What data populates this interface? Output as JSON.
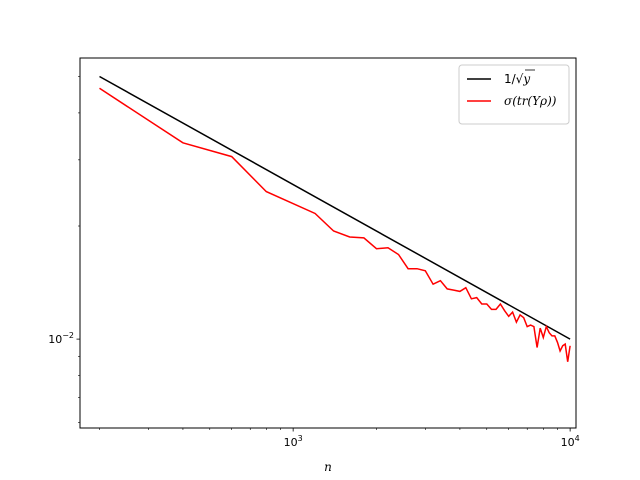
{
  "chart_data": {
    "type": "line",
    "title": "",
    "xlabel": "n",
    "ylabel": "",
    "xscale": "log",
    "yscale": "log",
    "xlim": [
      170,
      10500
    ],
    "ylim": [
      0.0058,
      0.056
    ],
    "grid": false,
    "legend_position": "top-right",
    "x_tick_labels": [
      {
        "value": 1000,
        "base": "10",
        "exp": "3"
      },
      {
        "value": 10000,
        "base": "10",
        "exp": "4"
      }
    ],
    "y_tick_labels": [
      {
        "value": 0.01,
        "base": "10",
        "exp": "−2"
      }
    ],
    "series": [
      {
        "name": "1/√y",
        "legend_label": {
          "main": "1/",
          "radicand": "y"
        },
        "color": "#000000",
        "x": [
          200,
          10000
        ],
        "y": [
          0.05,
          0.01
        ]
      },
      {
        "name": "σ(tr(Yρ))",
        "legend_label": {
          "main": "σ(tr(Yρ))"
        },
        "color": "#ff0000",
        "x": [
          200,
          400,
          600,
          800,
          1200,
          1400,
          1600,
          1800,
          2000,
          2200,
          2400,
          2600,
          2800,
          3000,
          3200,
          3400,
          3600,
          3800,
          4000,
          4200,
          4400,
          4600,
          4800,
          5000,
          5200,
          5400,
          5600,
          5800,
          6000,
          6200,
          6400,
          6600,
          6800,
          7000,
          7200,
          7400,
          7600,
          7800,
          8000,
          8200,
          8400,
          8600,
          8800,
          9000,
          9200,
          9400,
          9600,
          9800,
          10000
        ],
        "y": [
          0.0465,
          0.0333,
          0.0306,
          0.0247,
          0.0216,
          0.0194,
          0.0187,
          0.0186,
          0.0174,
          0.0175,
          0.0168,
          0.0154,
          0.0154,
          0.0152,
          0.014,
          0.0143,
          0.0136,
          0.0135,
          0.0134,
          0.0137,
          0.0128,
          0.0129,
          0.0124,
          0.0124,
          0.012,
          0.012,
          0.0124,
          0.0119,
          0.0115,
          0.0118,
          0.0111,
          0.0116,
          0.0114,
          0.0108,
          0.0109,
          0.0108,
          0.0095,
          0.0107,
          0.0101,
          0.0108,
          0.0104,
          0.0102,
          0.0102,
          0.0098,
          0.0093,
          0.0096,
          0.0097,
          0.0087,
          0.0096
        ]
      }
    ]
  }
}
